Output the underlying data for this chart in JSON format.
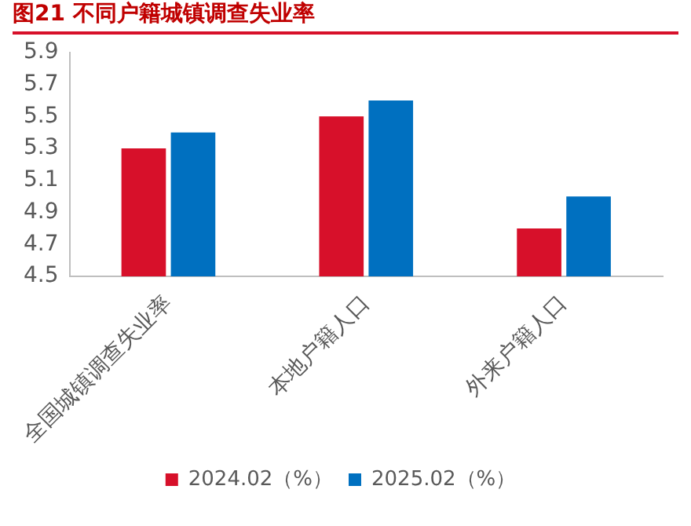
{
  "chart_data": {
    "type": "bar",
    "title": "图21  不同户籍城镇调查失业率",
    "categories": [
      "全国城镇调查失业率",
      "本地户籍人口",
      "外来户籍人口"
    ],
    "series": [
      {
        "name": "2024.02（%）",
        "color": "#d7102a",
        "values": [
          5.3,
          5.5,
          4.8
        ]
      },
      {
        "name": "2025.02（%）",
        "color": "#0070c0",
        "values": [
          5.4,
          5.6,
          5.0
        ]
      }
    ],
    "ylim": [
      4.5,
      5.9
    ],
    "yticks": [
      4.5,
      4.7,
      4.9,
      5.1,
      5.3,
      5.5,
      5.7,
      5.9
    ],
    "grid": false,
    "legend": "bottom"
  }
}
